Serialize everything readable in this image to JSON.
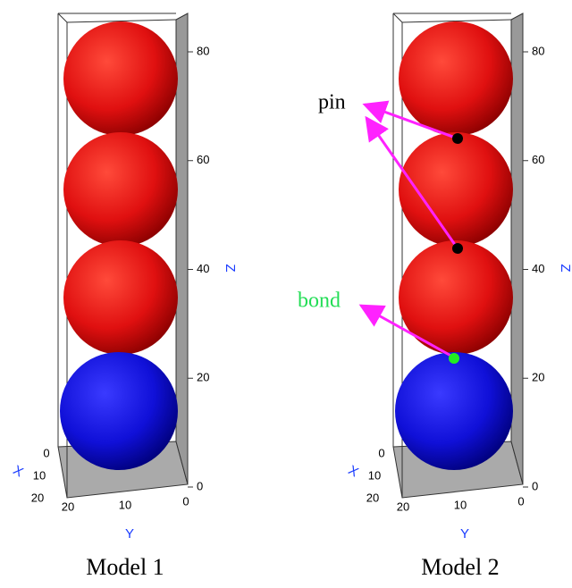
{
  "panels": [
    {
      "caption": "Model 1",
      "z_axis": {
        "label": "Z",
        "ticks": [
          "0",
          "20",
          "40",
          "60",
          "80"
        ]
      },
      "x_axis": {
        "label": "X",
        "ticks": [
          "0",
          "10",
          "20"
        ]
      },
      "y_axis": {
        "label": "Y",
        "ticks": [
          "20",
          "10",
          "0"
        ]
      }
    },
    {
      "caption": "Model 2",
      "z_axis": {
        "label": "Z",
        "ticks": [
          "0",
          "20",
          "40",
          "60",
          "80"
        ]
      },
      "x_axis": {
        "label": "X",
        "ticks": [
          "0",
          "10",
          "20"
        ]
      },
      "y_axis": {
        "label": "Y",
        "ticks": [
          "20",
          "10",
          "0"
        ]
      },
      "annotations": {
        "pin": "pin",
        "bond": "bond"
      }
    }
  ]
}
